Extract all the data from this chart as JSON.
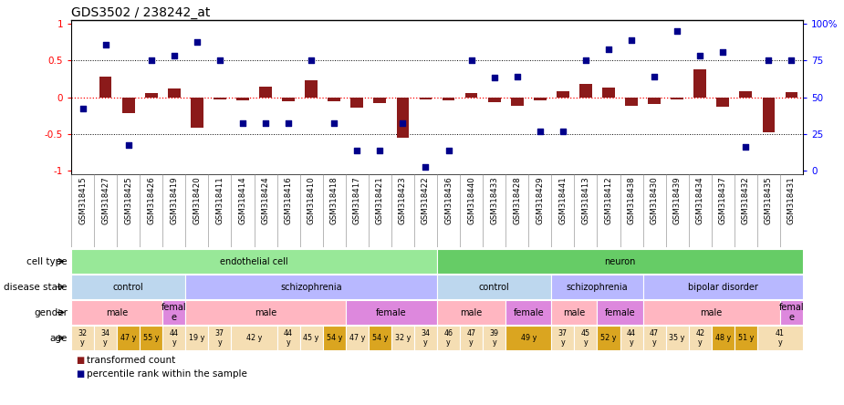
{
  "title": "GDS3502 / 238242_at",
  "sample_ids": [
    "GSM318415",
    "GSM318427",
    "GSM318425",
    "GSM318426",
    "GSM318419",
    "GSM318420",
    "GSM318411",
    "GSM318414",
    "GSM318424",
    "GSM318416",
    "GSM318410",
    "GSM318418",
    "GSM318417",
    "GSM318421",
    "GSM318423",
    "GSM318422",
    "GSM318436",
    "GSM318440",
    "GSM318433",
    "GSM318428",
    "GSM318429",
    "GSM318441",
    "GSM318413",
    "GSM318412",
    "GSM318438",
    "GSM318430",
    "GSM318439",
    "GSM318434",
    "GSM318437",
    "GSM318432",
    "GSM318435",
    "GSM318431"
  ],
  "bar_values": [
    0.0,
    0.28,
    -0.22,
    0.05,
    0.12,
    -0.42,
    -0.03,
    -0.04,
    0.14,
    -0.05,
    0.23,
    -0.05,
    -0.14,
    -0.08,
    -0.55,
    -0.03,
    -0.04,
    0.05,
    -0.07,
    -0.12,
    -0.04,
    0.08,
    0.18,
    0.13,
    -0.12,
    -0.09,
    -0.03,
    0.38,
    -0.13,
    0.08,
    -0.48,
    0.07
  ],
  "dot_values": [
    -0.16,
    0.72,
    -0.65,
    0.5,
    0.56,
    0.75,
    0.5,
    -0.35,
    -0.35,
    -0.35,
    0.5,
    -0.35,
    -0.73,
    -0.73,
    -0.35,
    -0.95,
    -0.73,
    0.5,
    0.27,
    0.28,
    -0.46,
    -0.46,
    0.5,
    0.65,
    0.78,
    0.28,
    0.9,
    0.56,
    0.62,
    -0.68,
    0.5,
    0.5
  ],
  "cell_type_spans": [
    {
      "label": "endothelial cell",
      "start": 0,
      "end": 16,
      "color": "#98E898"
    },
    {
      "label": "neuron",
      "start": 16,
      "end": 32,
      "color": "#66CC66"
    }
  ],
  "disease_state_spans": [
    {
      "label": "control",
      "start": 0,
      "end": 5,
      "color": "#BDD7EE"
    },
    {
      "label": "schizophrenia",
      "start": 5,
      "end": 16,
      "color": "#B8B8FF"
    },
    {
      "label": "control",
      "start": 16,
      "end": 21,
      "color": "#BDD7EE"
    },
    {
      "label": "schizophrenia",
      "start": 21,
      "end": 25,
      "color": "#B8B8FF"
    },
    {
      "label": "bipolar disorder",
      "start": 25,
      "end": 32,
      "color": "#B8B8FF"
    }
  ],
  "gender_spans": [
    {
      "label": "male",
      "start": 0,
      "end": 4,
      "color": "#FFB6C1"
    },
    {
      "label": "femal\ne",
      "start": 4,
      "end": 5,
      "color": "#DD88DD"
    },
    {
      "label": "male",
      "start": 5,
      "end": 12,
      "color": "#FFB6C1"
    },
    {
      "label": "female",
      "start": 12,
      "end": 16,
      "color": "#DD88DD"
    },
    {
      "label": "male",
      "start": 16,
      "end": 19,
      "color": "#FFB6C1"
    },
    {
      "label": "female",
      "start": 19,
      "end": 21,
      "color": "#DD88DD"
    },
    {
      "label": "male",
      "start": 21,
      "end": 23,
      "color": "#FFB6C1"
    },
    {
      "label": "female",
      "start": 23,
      "end": 25,
      "color": "#DD88DD"
    },
    {
      "label": "male",
      "start": 25,
      "end": 31,
      "color": "#FFB6C1"
    },
    {
      "label": "femal\ne",
      "start": 31,
      "end": 32,
      "color": "#DD88DD"
    }
  ],
  "age_data": [
    {
      "label": "32\ny",
      "start": 0,
      "end": 1,
      "color": "#F5DEB3"
    },
    {
      "label": "34\ny",
      "start": 1,
      "end": 2,
      "color": "#F5DEB3"
    },
    {
      "label": "47 y",
      "start": 2,
      "end": 3,
      "color": "#DAA520"
    },
    {
      "label": "55 y",
      "start": 3,
      "end": 4,
      "color": "#DAA520"
    },
    {
      "label": "44\ny",
      "start": 4,
      "end": 5,
      "color": "#F5DEB3"
    },
    {
      "label": "19 y",
      "start": 5,
      "end": 6,
      "color": "#F5DEB3"
    },
    {
      "label": "37\ny",
      "start": 6,
      "end": 7,
      "color": "#F5DEB3"
    },
    {
      "label": "42 y",
      "start": 7,
      "end": 9,
      "color": "#F5DEB3"
    },
    {
      "label": "44\ny",
      "start": 9,
      "end": 10,
      "color": "#F5DEB3"
    },
    {
      "label": "45 y",
      "start": 10,
      "end": 11,
      "color": "#F5DEB3"
    },
    {
      "label": "54 y",
      "start": 11,
      "end": 12,
      "color": "#DAA520"
    },
    {
      "label": "47 y",
      "start": 12,
      "end": 13,
      "color": "#F5DEB3"
    },
    {
      "label": "54 y",
      "start": 13,
      "end": 14,
      "color": "#DAA520"
    },
    {
      "label": "32 y",
      "start": 14,
      "end": 15,
      "color": "#F5DEB3"
    },
    {
      "label": "34\ny",
      "start": 15,
      "end": 16,
      "color": "#F5DEB3"
    },
    {
      "label": "46\ny",
      "start": 16,
      "end": 17,
      "color": "#F5DEB3"
    },
    {
      "label": "47\ny",
      "start": 17,
      "end": 18,
      "color": "#F5DEB3"
    },
    {
      "label": "39\ny",
      "start": 18,
      "end": 19,
      "color": "#F5DEB3"
    },
    {
      "label": "49 y",
      "start": 19,
      "end": 21,
      "color": "#DAA520"
    },
    {
      "label": "37\ny",
      "start": 21,
      "end": 22,
      "color": "#F5DEB3"
    },
    {
      "label": "45\ny",
      "start": 22,
      "end": 23,
      "color": "#F5DEB3"
    },
    {
      "label": "52 y",
      "start": 23,
      "end": 24,
      "color": "#DAA520"
    },
    {
      "label": "44\ny",
      "start": 24,
      "end": 25,
      "color": "#F5DEB3"
    },
    {
      "label": "47\ny",
      "start": 25,
      "end": 26,
      "color": "#F5DEB3"
    },
    {
      "label": "35 y",
      "start": 26,
      "end": 27,
      "color": "#F5DEB3"
    },
    {
      "label": "42\ny",
      "start": 27,
      "end": 28,
      "color": "#F5DEB3"
    },
    {
      "label": "48 y",
      "start": 28,
      "end": 29,
      "color": "#DAA520"
    },
    {
      "label": "51 y",
      "start": 29,
      "end": 30,
      "color": "#DAA520"
    },
    {
      "label": "41\ny",
      "start": 30,
      "end": 32,
      "color": "#F5DEB3"
    }
  ],
  "bar_color": "#8B1A1A",
  "dot_color": "#00008B",
  "left_axis_ticks": [
    -1,
    -0.5,
    0,
    0.5,
    1
  ],
  "right_axis_labels": [
    "0",
    "25",
    "50",
    "75",
    "100%"
  ],
  "legend_bar_label": "transformed count",
  "legend_dot_label": "percentile rank within the sample"
}
